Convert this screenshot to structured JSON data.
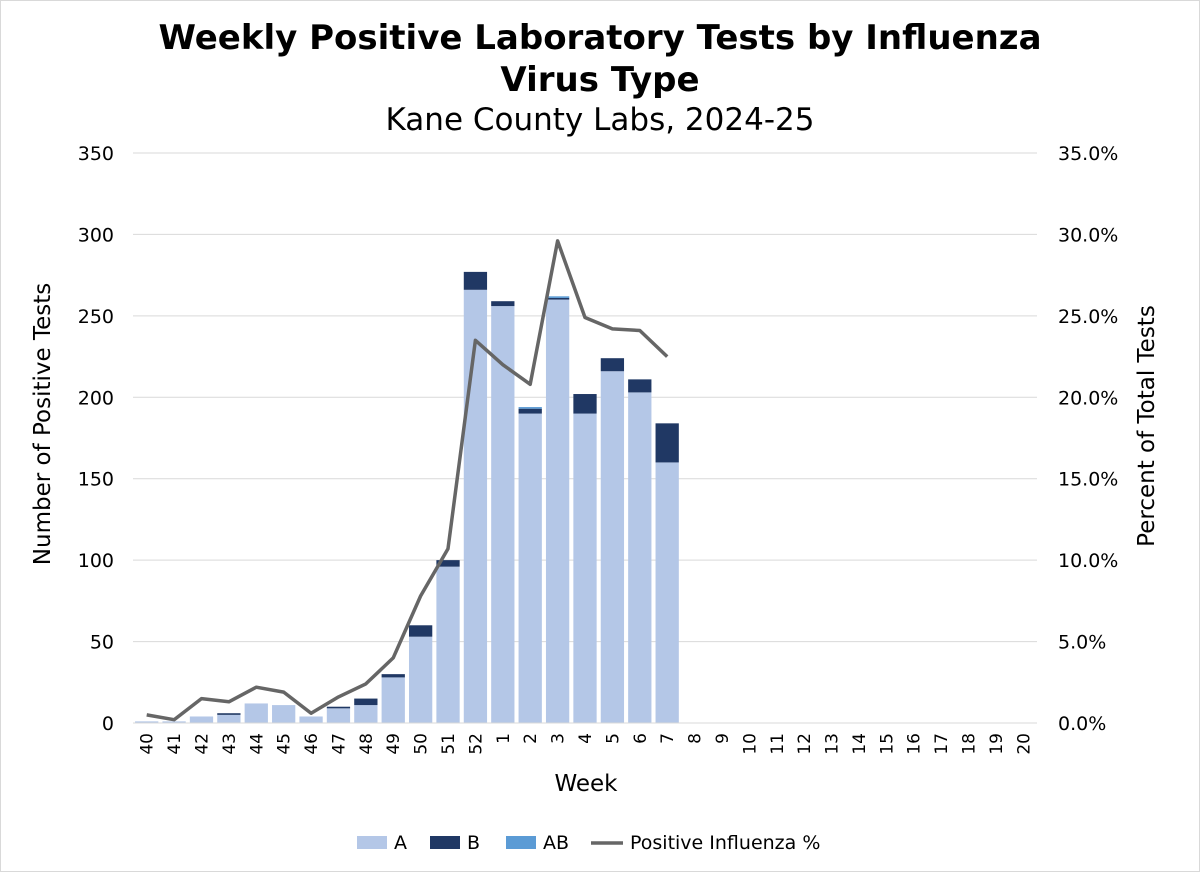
{
  "chart_data": {
    "type": "bar",
    "title_line1": "Weekly Positive Laboratory Tests by Influenza",
    "title_line2": "Virus Type",
    "subtitle": "Kane County Labs, 2024-25",
    "xlabel": "Week",
    "ylabel_left": "Number of Positive Tests",
    "ylabel_right": "Percent of Total Tests",
    "ylim_left": [
      0,
      350
    ],
    "ylim_right": [
      0,
      35
    ],
    "left_ticks": [
      "0",
      "50",
      "100",
      "150",
      "200",
      "250",
      "300",
      "350"
    ],
    "right_ticks": [
      "0.0%",
      "5.0%",
      "10.0%",
      "15.0%",
      "20.0%",
      "25.0%",
      "30.0%",
      "35.0%"
    ],
    "categories": [
      "40",
      "41",
      "42",
      "43",
      "44",
      "45",
      "46",
      "47",
      "48",
      "49",
      "50",
      "51",
      "52",
      "1",
      "2",
      "3",
      "4",
      "5",
      "6",
      "7",
      "8",
      "9",
      "10",
      "11",
      "12",
      "13",
      "14",
      "15",
      "16",
      "17",
      "18",
      "19",
      "20"
    ],
    "series": [
      {
        "name": "A",
        "kind": "bar",
        "color": "#b4c7e7",
        "values": [
          1,
          1,
          4,
          5,
          12,
          11,
          4,
          9,
          11,
          28,
          53,
          96,
          266,
          256,
          190,
          260,
          190,
          216,
          203,
          160,
          null,
          null,
          null,
          null,
          null,
          null,
          null,
          null,
          null,
          null,
          null,
          null,
          null
        ]
      },
      {
        "name": "B",
        "kind": "bar",
        "color": "#203864",
        "values": [
          0,
          0,
          0,
          1,
          0,
          0,
          0,
          1,
          4,
          2,
          7,
          4,
          11,
          3,
          3,
          1,
          12,
          8,
          8,
          24,
          null,
          null,
          null,
          null,
          null,
          null,
          null,
          null,
          null,
          null,
          null,
          null,
          null
        ]
      },
      {
        "name": "AB",
        "kind": "bar",
        "color": "#5b9bd5",
        "values": [
          0,
          0,
          0,
          0,
          0,
          0,
          0,
          0,
          0,
          0,
          0,
          0,
          0,
          0,
          1,
          1,
          0,
          0,
          0,
          0,
          null,
          null,
          null,
          null,
          null,
          null,
          null,
          null,
          null,
          null,
          null,
          null,
          null
        ]
      },
      {
        "name": "Positive Influenza %",
        "kind": "line",
        "axis": "right",
        "color": "#666666",
        "values": [
          0.5,
          0.2,
          1.5,
          1.3,
          2.2,
          1.9,
          0.6,
          1.6,
          2.4,
          4.0,
          7.8,
          10.7,
          23.5,
          22.0,
          20.8,
          29.6,
          24.9,
          24.2,
          24.1,
          22.5,
          null,
          null,
          null,
          null,
          null,
          null,
          null,
          null,
          null,
          null,
          null,
          null,
          null
        ]
      }
    ],
    "grid": true,
    "legend": "bottom"
  }
}
